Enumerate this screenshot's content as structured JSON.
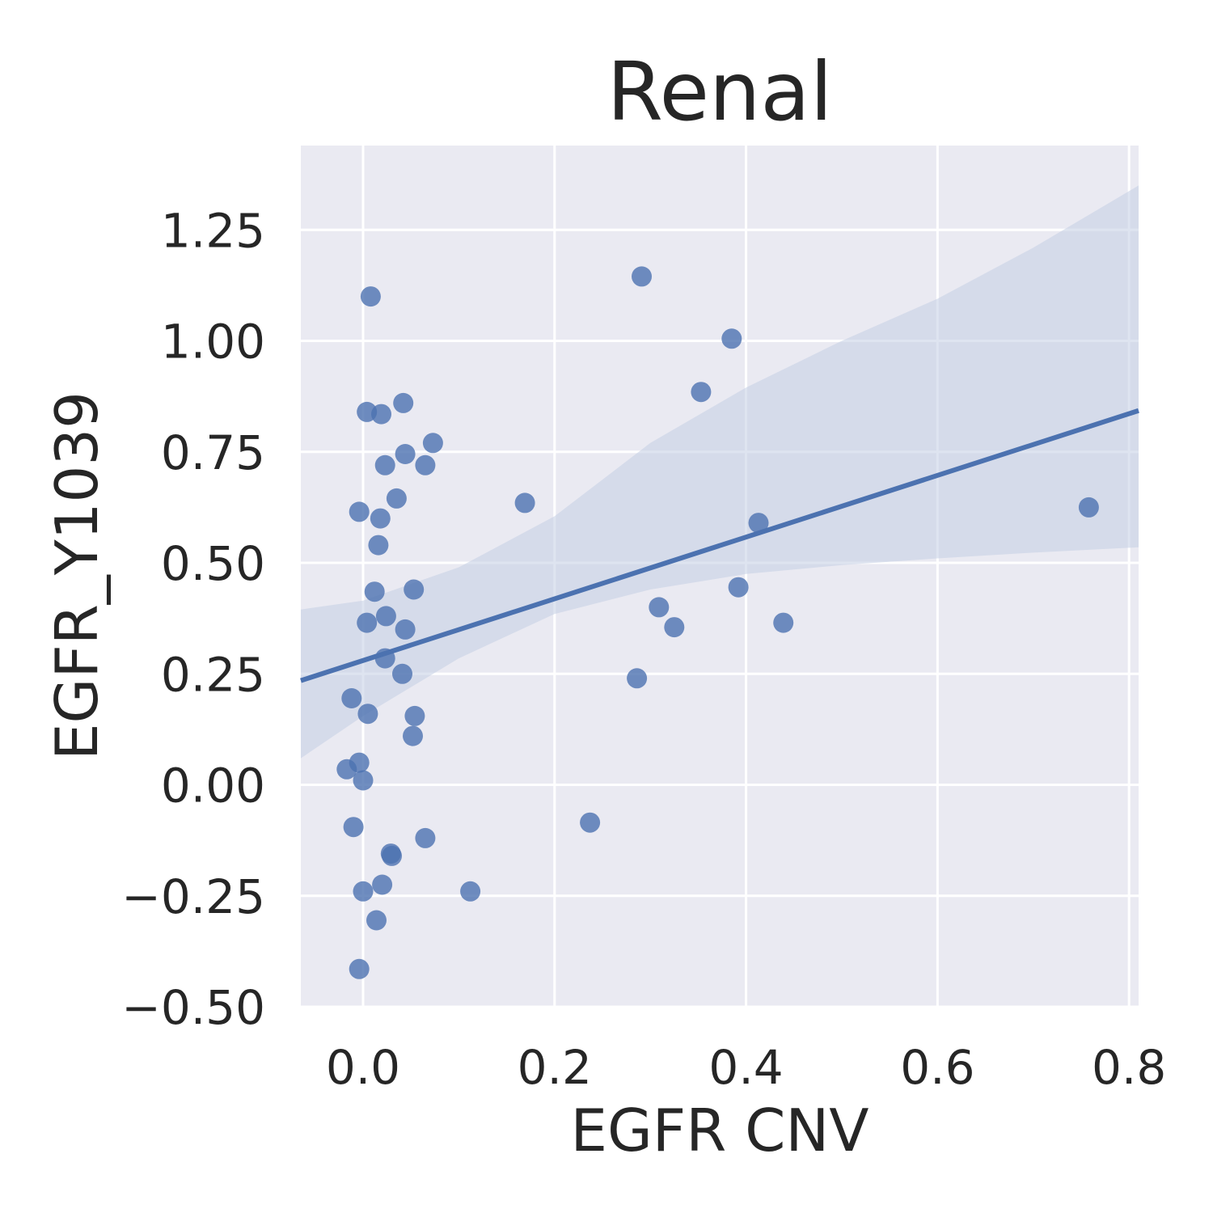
{
  "chart_data": {
    "type": "scatter",
    "title": "Renal",
    "xlabel": "EGFR CNV",
    "ylabel": "EGFR_Y1039",
    "xlim": [
      -0.065,
      0.81
    ],
    "ylim": [
      -0.5,
      1.44
    ],
    "xticks": [
      0.0,
      0.2,
      0.4,
      0.6,
      0.8
    ],
    "xtick_labels": [
      "0.0",
      "0.2",
      "0.4",
      "0.6",
      "0.8"
    ],
    "yticks": [
      -0.5,
      -0.25,
      0.0,
      0.25,
      0.5,
      0.75,
      1.0,
      1.25
    ],
    "ytick_labels": [
      "−0.50",
      "−0.25",
      "0.00",
      "0.25",
      "0.50",
      "0.75",
      "1.00",
      "1.25"
    ],
    "grid": true,
    "colors": {
      "background": "#eaeaf2",
      "grid": "#ffffff",
      "point": "#4c72b0",
      "line": "#4c72b0",
      "band": "#c3cee3"
    },
    "points": [
      {
        "x": 0.008,
        "y": 1.1
      },
      {
        "x": 0.291,
        "y": 1.145
      },
      {
        "x": 0.385,
        "y": 1.005
      },
      {
        "x": 0.353,
        "y": 0.885
      },
      {
        "x": 0.004,
        "y": 0.84
      },
      {
        "x": 0.019,
        "y": 0.835
      },
      {
        "x": 0.042,
        "y": 0.86
      },
      {
        "x": 0.044,
        "y": 0.745
      },
      {
        "x": 0.073,
        "y": 0.77
      },
      {
        "x": 0.023,
        "y": 0.72
      },
      {
        "x": 0.065,
        "y": 0.72
      },
      {
        "x": 0.035,
        "y": 0.645
      },
      {
        "x": -0.004,
        "y": 0.615
      },
      {
        "x": 0.018,
        "y": 0.6
      },
      {
        "x": 0.169,
        "y": 0.635
      },
      {
        "x": 0.758,
        "y": 0.625
      },
      {
        "x": 0.413,
        "y": 0.59
      },
      {
        "x": 0.016,
        "y": 0.54
      },
      {
        "x": 0.012,
        "y": 0.435
      },
      {
        "x": 0.053,
        "y": 0.44
      },
      {
        "x": 0.392,
        "y": 0.445
      },
      {
        "x": 0.024,
        "y": 0.38
      },
      {
        "x": 0.004,
        "y": 0.365
      },
      {
        "x": 0.044,
        "y": 0.35
      },
      {
        "x": 0.309,
        "y": 0.4
      },
      {
        "x": 0.325,
        "y": 0.355
      },
      {
        "x": 0.439,
        "y": 0.365
      },
      {
        "x": 0.023,
        "y": 0.285
      },
      {
        "x": 0.041,
        "y": 0.25
      },
      {
        "x": 0.286,
        "y": 0.24
      },
      {
        "x": -0.012,
        "y": 0.195
      },
      {
        "x": 0.005,
        "y": 0.16
      },
      {
        "x": 0.054,
        "y": 0.155
      },
      {
        "x": 0.052,
        "y": 0.11
      },
      {
        "x": -0.017,
        "y": 0.035
      },
      {
        "x": -0.004,
        "y": 0.05
      },
      {
        "x": 0.0,
        "y": 0.01
      },
      {
        "x": -0.01,
        "y": -0.095
      },
      {
        "x": 0.065,
        "y": -0.12
      },
      {
        "x": 0.237,
        "y": -0.085
      },
      {
        "x": 0.029,
        "y": -0.155
      },
      {
        "x": 0.03,
        "y": -0.16
      },
      {
        "x": 0.02,
        "y": -0.225
      },
      {
        "x": 0.0,
        "y": -0.24
      },
      {
        "x": 0.112,
        "y": -0.24
      },
      {
        "x": 0.014,
        "y": -0.305
      },
      {
        "x": -0.004,
        "y": -0.415
      }
    ],
    "regression": {
      "intercept": 0.28,
      "slope": 0.695
    },
    "ci_band": [
      {
        "x": -0.065,
        "lower": 0.06,
        "upper": 0.395
      },
      {
        "x": 0.0,
        "lower": 0.155,
        "upper": 0.415
      },
      {
        "x": 0.1,
        "lower": 0.285,
        "upper": 0.49
      },
      {
        "x": 0.2,
        "lower": 0.385,
        "upper": 0.605
      },
      {
        "x": 0.3,
        "lower": 0.44,
        "upper": 0.77
      },
      {
        "x": 0.4,
        "lower": 0.475,
        "upper": 0.895
      },
      {
        "x": 0.5,
        "lower": 0.495,
        "upper": 1.0
      },
      {
        "x": 0.6,
        "lower": 0.51,
        "upper": 1.095
      },
      {
        "x": 0.7,
        "lower": 0.523,
        "upper": 1.21
      },
      {
        "x": 0.81,
        "lower": 0.535,
        "upper": 1.35
      }
    ]
  }
}
